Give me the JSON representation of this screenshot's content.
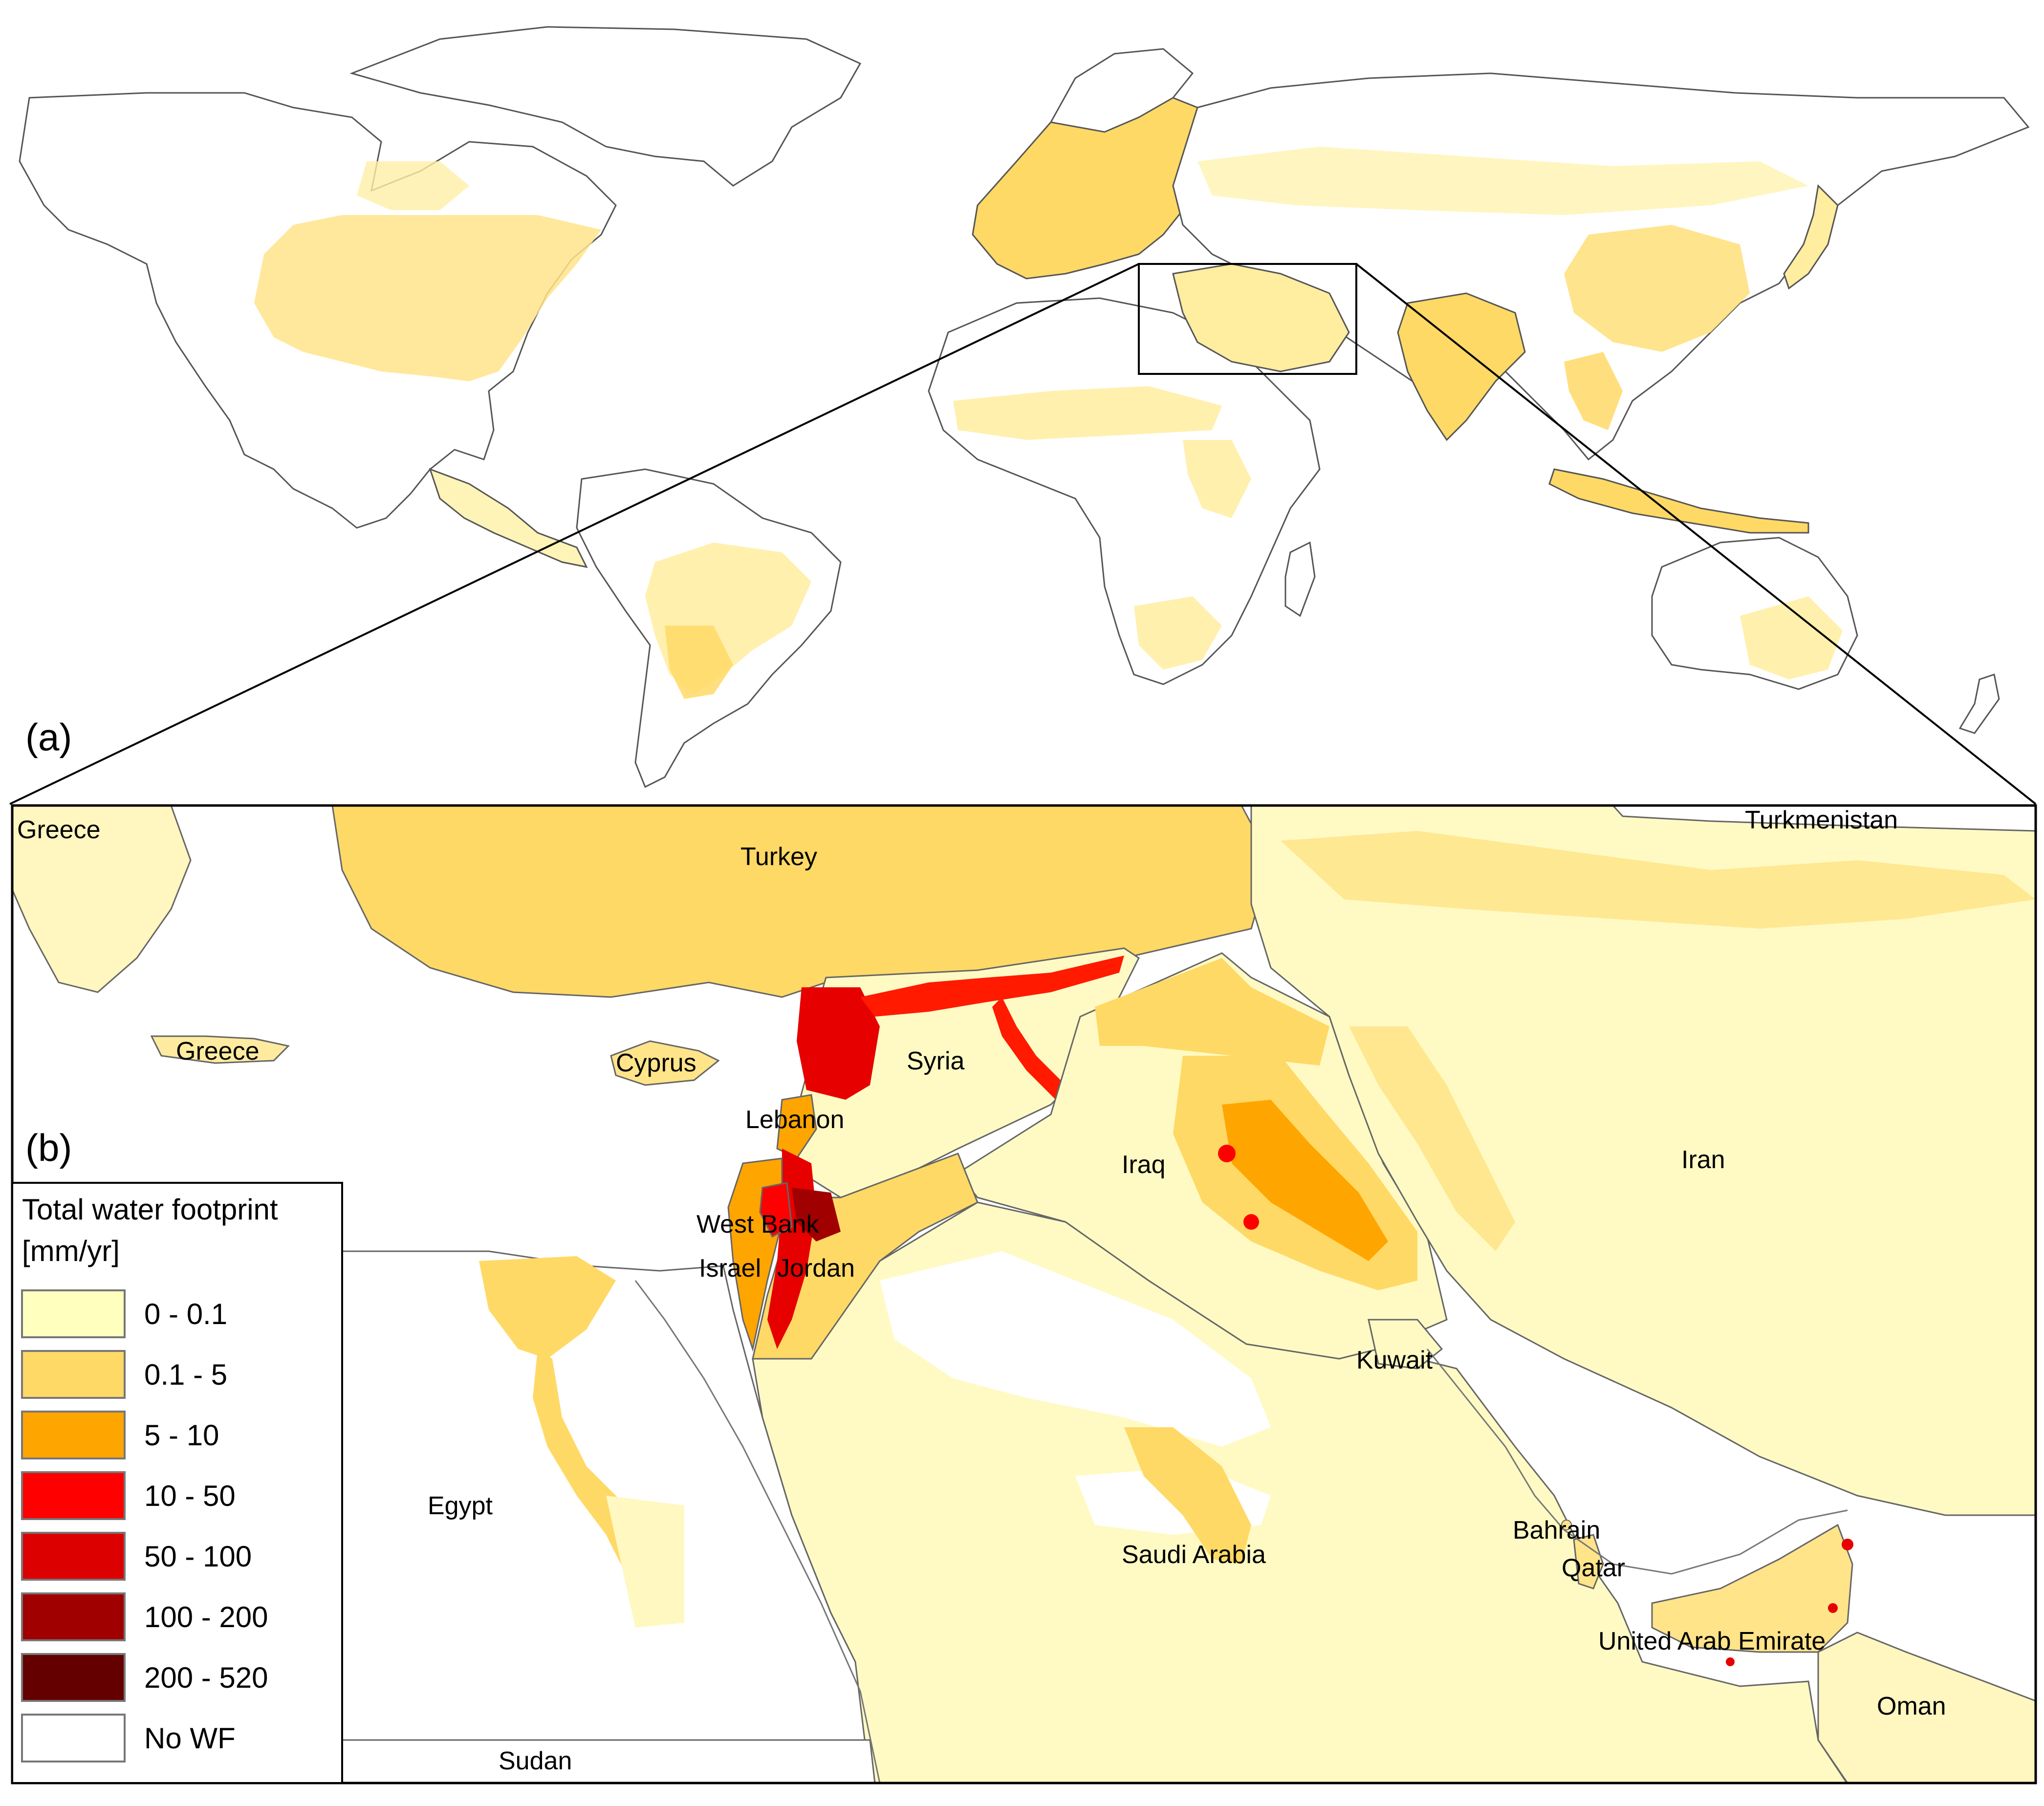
{
  "figure": {
    "panel_a_label": "(a)",
    "panel_b_label": "(b)"
  },
  "legend": {
    "title_line1": "Total water footprint",
    "title_line2": "[mm/yr]",
    "items": [
      {
        "label": "0 - 0.1",
        "color": "#FFFFBE"
      },
      {
        "label": "0.1 - 5",
        "color": "#FFD966"
      },
      {
        "label": "5 - 10",
        "color": "#FFA500"
      },
      {
        "label": "10 - 50",
        "color": "#FF0000"
      },
      {
        "label": "50 - 100",
        "color": "#DD0000"
      },
      {
        "label": "100 - 200",
        "color": "#A00000"
      },
      {
        "label": "200 - 520",
        "color": "#650000"
      },
      {
        "label": "No WF",
        "color": "#FFFFFF"
      }
    ]
  },
  "countries": {
    "greece_nw": "Greece",
    "greece_crete": "Greece",
    "turkey": "Turkey",
    "turkmenistan": "Turkmenistan",
    "syria": "Syria",
    "cyprus": "Cyprus",
    "lebanon": "Lebanon",
    "iraq": "Iraq",
    "iran": "Iran",
    "west_bank": "West Bank",
    "israel": "Israel",
    "jordan": "Jordan",
    "kuwait": "Kuwait",
    "egypt": "Egypt",
    "bahrain": "Bahrain",
    "qatar": "Qatar",
    "saudi_arabia": "Saudi Arabia",
    "uae": "United Arab Emirate",
    "oman": "Oman",
    "sudan": "Sudan"
  }
}
